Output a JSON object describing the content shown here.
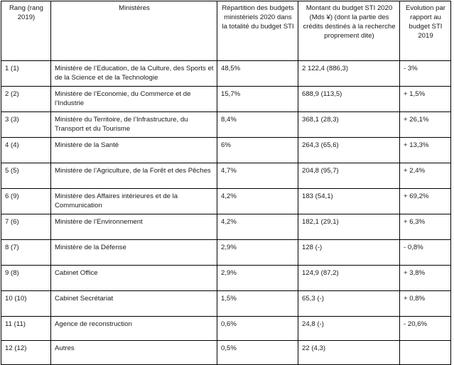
{
  "table": {
    "headers": [
      "Rang (rang 2019)",
      "Ministères",
      "Répartition des budgets ministériels 2020 dans la totalité du budget STI",
      "Montant du budget STI 2020 (Mds ¥) (dont la partie des crédits destinés à la recherche proprement dite)",
      "Evolution par rapport au budget STI 2019"
    ],
    "rows": [
      [
        "1 (1)",
        "Ministère de l’Education, de la Culture, des Sports et de la Science et de la Technologie",
        "48,5%",
        "2 122,4 (886,3)",
        "- 3%"
      ],
      [
        "2 (2)",
        "Ministère de l’Economie, du Commerce et de l’Industrie",
        "15,7%",
        "688,9 (113,5)",
        "+ 1,5%"
      ],
      [
        "3 (3)",
        "Ministère du Territoire, de l’Infrastructure, du Transport et du Tourisme",
        "8,4%",
        "368,1 (28,3)",
        "+ 26,1%"
      ],
      [
        "4 (4)",
        "Ministère de la Santé",
        "6%",
        "264,3 (65,6)",
        "+ 13,3%"
      ],
      [
        "5 (5)",
        "Ministère de l’Agriculture, de la Forêt et des Pêches",
        "4,7%",
        "204,8 (95,7)",
        "+ 2,4%"
      ],
      [
        "6 (9)",
        "Ministère des Affaires intérieures et de la Communication",
        "4,2%",
        "183 (54,1)",
        "+ 69,2%"
      ],
      [
        "7 (6)",
        "Ministère de l’Environnement",
        "4,2%",
        "182,1 (29,1)",
        "+ 6,3%"
      ],
      [
        "8 (7)",
        "Ministère de la Défense",
        "2,9%",
        "128 (-)",
        "- 0,8%"
      ],
      [
        "9 (8)",
        "Cabinet Office",
        "2,9%",
        "124,9 (87,2)",
        "+ 3,8%"
      ],
      [
        "10 (10)",
        "Cabinet Secrétariat",
        "1,5%",
        "65,3 (-)",
        "+ 0,8%"
      ],
      [
        "11 (11)",
        "Agence de reconstruction",
        "0,6%",
        "24,8 (-)",
        "- 20,6%"
      ],
      [
        "12 (12)",
        "Autres",
        "0,5%",
        "22 (4,3)",
        ""
      ]
    ]
  }
}
